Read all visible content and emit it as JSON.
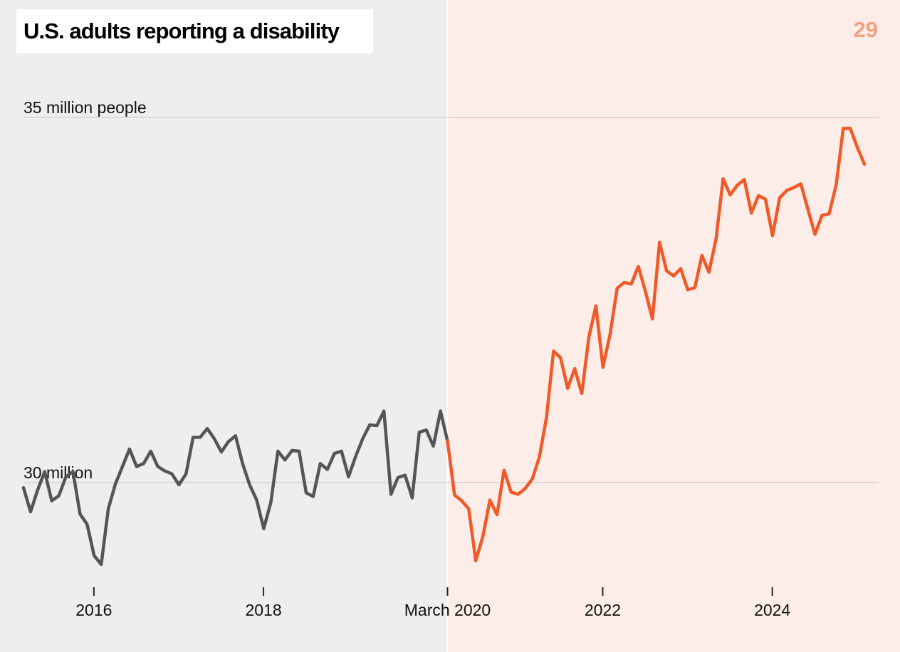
{
  "title": "U.S. adults reporting a disability",
  "page_number": "29",
  "colors": {
    "pre_background": "#eeeeee",
    "post_background": "#fcede8",
    "pre_line": "#555555",
    "post_line": "#f05a28",
    "page_number": "#f3a183",
    "gridline": "#c4c4c4"
  },
  "chart_data": {
    "type": "line",
    "title": "U.S. adults reporting a disability",
    "xlabel": "",
    "ylabel": "",
    "y_unit_label": "35 million people",
    "y_ticks": [
      {
        "value": 30,
        "label": "30 million"
      },
      {
        "value": 35,
        "label": "35 million people"
      }
    ],
    "x_ticks": [
      {
        "value": 2016.0,
        "label": "2016"
      },
      {
        "value": 2018.0,
        "label": "2018"
      },
      {
        "value": 2020.17,
        "label": "March 2020"
      },
      {
        "value": 2022.0,
        "label": "2022"
      },
      {
        "value": 2024.0,
        "label": "2024"
      }
    ],
    "xlim": [
      2015.17,
      2025.17
    ],
    "ylim": [
      28.6,
      35.7
    ],
    "split_x": 2020.17,
    "grid": "horizontal",
    "series": [
      {
        "segment": "pre",
        "values": [
          29.93,
          29.6,
          29.9,
          30.15,
          29.75,
          29.82,
          30.08,
          30.15,
          29.57,
          29.43,
          29.0,
          28.88,
          29.64,
          29.98,
          30.22,
          30.46,
          30.22,
          30.26,
          30.43,
          30.22,
          30.16,
          30.12,
          29.97,
          30.12,
          30.62,
          30.62,
          30.74,
          30.6,
          30.42,
          30.56,
          30.64,
          30.26,
          29.97,
          29.76,
          29.37,
          29.73,
          30.43,
          30.31,
          30.44,
          30.43,
          29.86,
          29.81,
          30.26,
          30.18,
          30.4,
          30.43,
          30.08,
          30.36,
          30.6,
          30.79,
          30.78,
          30.98,
          29.84,
          30.07,
          30.1,
          29.79,
          30.69,
          30.72,
          30.5,
          30.98,
          30.57
        ]
      },
      {
        "segment": "post",
        "values": [
          30.57,
          29.83,
          29.75,
          29.64,
          28.93,
          29.26,
          29.76,
          29.56,
          30.17,
          29.87,
          29.84,
          29.92,
          30.05,
          30.35,
          30.89,
          31.8,
          31.71,
          31.29,
          31.56,
          31.22,
          31.99,
          32.42,
          31.58,
          32.03,
          32.66,
          32.74,
          32.72,
          32.96,
          32.62,
          32.24,
          33.29,
          32.9,
          32.83,
          32.93,
          32.64,
          32.67,
          33.11,
          32.88,
          33.34,
          34.16,
          33.94,
          34.07,
          34.15,
          33.69,
          33.93,
          33.88,
          33.38,
          33.9,
          34.0,
          34.04,
          34.09,
          33.74,
          33.4,
          33.66,
          33.68,
          34.08,
          34.85,
          34.85,
          34.59,
          34.36
        ]
      }
    ]
  }
}
